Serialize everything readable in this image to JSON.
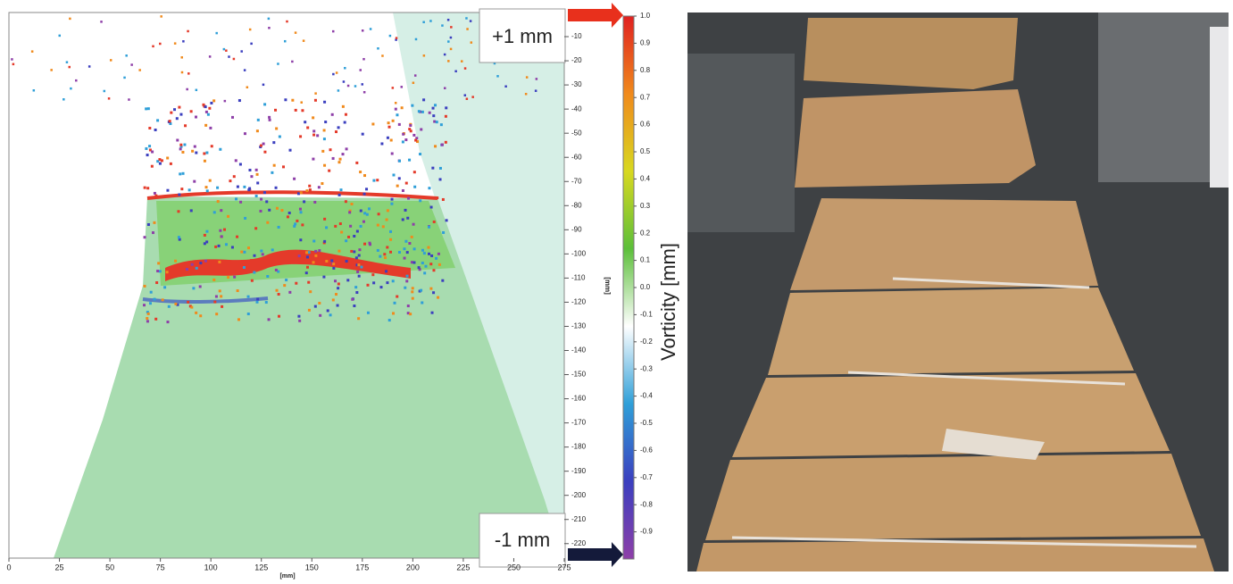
{
  "chart_data": {
    "type": "heatmap",
    "x_label": "[mm]",
    "y_label": "[mm]",
    "xlim": [
      0,
      275
    ],
    "xticks": [
      0,
      25,
      50,
      75,
      100,
      125,
      150,
      175,
      200,
      225,
      250,
      275
    ],
    "ylim": [
      -226,
      0
    ],
    "yticks": [
      -10,
      -20,
      -30,
      -40,
      -50,
      -60,
      -70,
      -80,
      -90,
      -100,
      -110,
      -120,
      -130,
      -140,
      -150,
      -160,
      -170,
      -180,
      -190,
      -200,
      -210,
      -220
    ],
    "colorbar": {
      "label": "Vorticity [mm]",
      "lim": [
        -1,
        1
      ],
      "ticks": [
        {
          "value": 1,
          "label": "1.0"
        },
        0.9,
        0.8,
        0.7,
        0.6,
        0.5,
        0.4,
        0.3,
        0.2,
        0.1,
        {
          "value": 0,
          "label": "0.0"
        },
        -0.1,
        -0.2,
        -0.3,
        -0.4,
        -0.5,
        -0.6,
        -0.7,
        -0.8,
        -0.9
      ],
      "colors": [
        "#8e3fa8",
        "#3b3fbf",
        "#2f9fd8",
        "#ffffff",
        "#5cbf3a",
        "#d8d820",
        "#f08a1c",
        "#e02020"
      ]
    },
    "annotations": [
      "+1 mm",
      "-1 mm"
    ]
  }
}
